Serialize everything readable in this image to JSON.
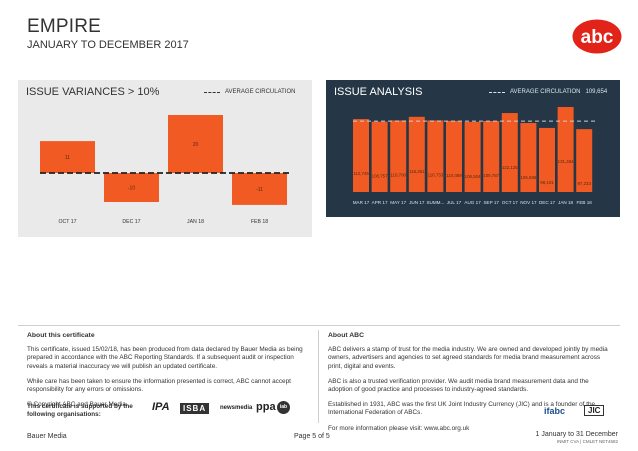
{
  "header": {
    "title": "EMPIRE",
    "subtitle": "JANUARY TO DECEMBER 2017",
    "logo_text": "abc"
  },
  "variances": {
    "title": "ISSUE VARIANCES > 10%",
    "legend": "AVERAGE CIRCULATION",
    "chart_data": {
      "type": "bar",
      "categories": [
        "OCT 17",
        "DEC 17",
        "JAN 18",
        "FEB 18"
      ],
      "values": [
        11,
        -10,
        20,
        -11
      ],
      "color": "#f15a22"
    }
  },
  "analysis": {
    "title": "ISSUE ANALYSIS",
    "legend": "AVERAGE CIRCULATION",
    "average_value": "109,654",
    "chart_data": {
      "type": "bar",
      "categories": [
        "MAR 17",
        "APR 17",
        "MAY 17",
        "JUN 17",
        "SUMM...",
        "JUL 17",
        "AUG 17",
        "SEP 17",
        "OCT 17",
        "NOV 17",
        "DEC 17",
        "JAN 18",
        "FEB 18"
      ],
      "values": [
        112745,
        108757,
        110700,
        116281,
        110733,
        110089,
        108504,
        109787,
        122125,
        106686,
        99101,
        131484,
        97233
      ],
      "labels": [
        "112,745",
        "108,757",
        "110,700",
        "116,281",
        "110,733",
        "110,089",
        "108,504",
        "109,787",
        "122,125",
        "106,686",
        "99,101",
        "131,484",
        "97,233"
      ],
      "average": 109654,
      "color": "#f15a22"
    }
  },
  "certificate": {
    "heading": "About this certificate",
    "p1": "This certificate, issued 15/02/18, has been produced from data declared by Bauer Media as being prepared in accordance with the ABC Reporting Standards. If a subsequent audit or inspection reveals a material inaccuracy we will publish an updated certificate.",
    "p2": "While care has been taken to ensure the information presented is correct, ABC cannot accept responsibility for any errors or omissions.",
    "p3": "© Copyright ABC and Bauer Media.",
    "supported": "This certificate is supported by the following organisations:",
    "orgs": [
      "IPA",
      "ISBA",
      "newsmedia",
      "ppa",
      "iab"
    ]
  },
  "about": {
    "heading": "About ABC",
    "p1": "ABC delivers a stamp of trust for the media industry. We are owned and developed jointly by media owners, advertisers and agencies to set agreed standards for media brand measurement across print, digital and events.",
    "p2": "ABC is also a trusted verification provider. We audit media brand measurement data and the adoption of good practice and processes to industry-agreed standards.",
    "p3": "Established in 1931, ABC was the first UK Joint Industry Currency (JIC) and is a founder of the International Federation of ABCs.",
    "p4": "For more information please visit: www.abc.org.uk",
    "badges": [
      "ifabc",
      "JIC"
    ]
  },
  "footer": {
    "left": "Bauer Media",
    "center": "Page 5 of 5",
    "right": "1 January to 31 December",
    "right_small": "INMIT CVA | CMLET NET4682"
  }
}
